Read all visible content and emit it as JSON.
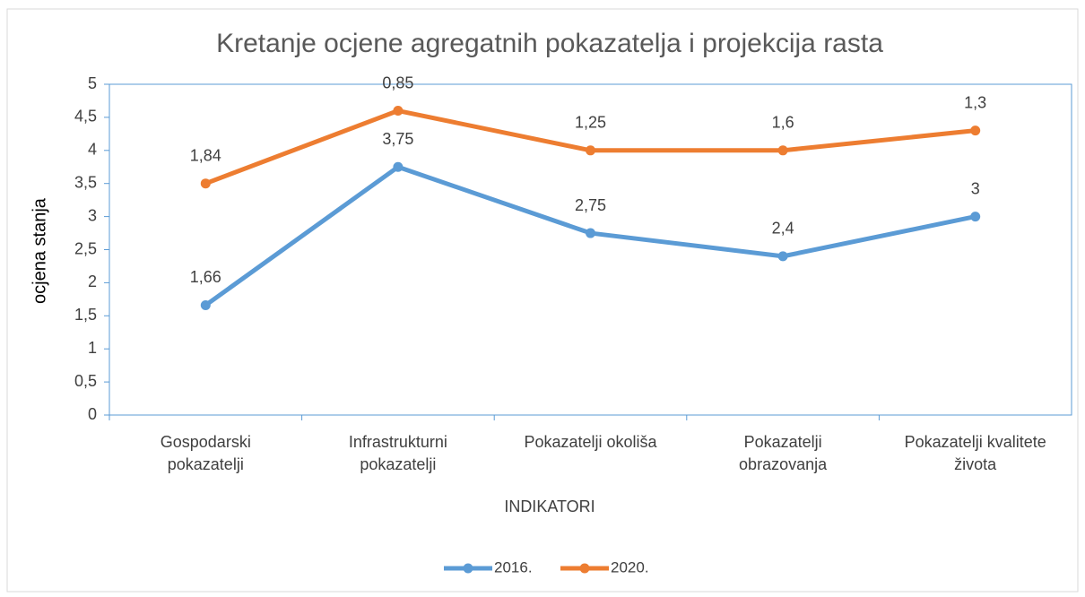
{
  "chart_data": {
    "type": "line",
    "stacked": true,
    "title": "Kretanje ocjene agregatnih pokazatelja i projekcija rasta",
    "x_label": "INDIKATORI",
    "y_label": "ocjena stanja",
    "categories": [
      "Gospodarski pokazatelji",
      "Infrastrukturni pokazatelji",
      "Pokazatelji okoliša",
      "Pokazatelji obrazovanja",
      "Pokazatelji kvalitete života"
    ],
    "series": [
      {
        "name": "2016.",
        "color": "#5b9bd5",
        "values": [
          1.66,
          3.75,
          2.75,
          2.4,
          3
        ],
        "value_labels": [
          "1,66",
          "3,75",
          "2,75",
          "2,4",
          "3"
        ]
      },
      {
        "name": "2020.",
        "color": "#ed7d31",
        "values": [
          1.84,
          0.85,
          1.25,
          1.6,
          1.3
        ],
        "value_labels": [
          "1,84",
          "0,85",
          "1,25",
          "1,6",
          "1,3"
        ]
      }
    ],
    "ylim": [
      0,
      5
    ],
    "yticks": [
      0,
      {
        "value": 0.5,
        "label": "0,5"
      },
      1,
      {
        "value": 1.5,
        "label": "1,5"
      },
      2,
      {
        "value": 2.5,
        "label": "2,5"
      },
      3,
      {
        "value": 3.5,
        "label": "3,5"
      },
      4,
      {
        "value": 4.5,
        "label": "4,5"
      },
      5
    ],
    "legend": "bottom",
    "grid": false
  }
}
